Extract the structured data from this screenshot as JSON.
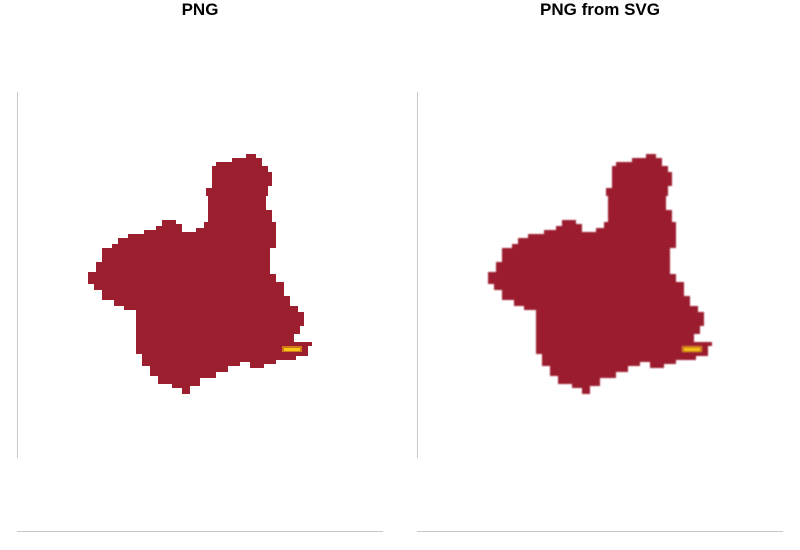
{
  "panels": [
    {
      "title": "PNG"
    },
    {
      "title": "PNG from SVG"
    }
  ],
  "colors": {
    "region_fill": "#9b1f2e",
    "hotspot_mid": "#d4771a",
    "hotspot_core": "#f5c518",
    "axis_line": "#c8c8c8"
  }
}
